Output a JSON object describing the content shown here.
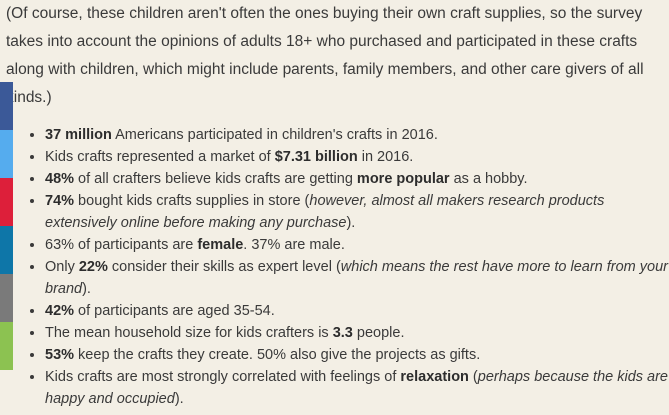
{
  "intro_text": "(Of course, these children aren't often the ones buying their own craft supplies, so the survey takes into account the opinions of adults 18+ who purchased and participated in these crafts along with children, which might include parents, family members, and other care givers of all kinds.)",
  "share_colors": [
    "#3b5998",
    "#55acee",
    "#dd1f3a",
    "#0e76a8",
    "#7a7a7a",
    "#8cc251"
  ],
  "facts": [
    [
      "37 million",
      " Americans participated in children's crafts in 2016."
    ],
    [
      "Kids crafts represented a market of ",
      "$7.31 billion",
      " in 2016."
    ],
    [
      "48%",
      " of all crafters believe kids crafts are getting ",
      "more popular",
      " as a hobby."
    ],
    [
      "74%",
      " bought kids crafts supplies in store (",
      "however, almost all makers research products extensively online before making any purchase",
      ")."
    ],
    [
      "63% of participants are ",
      "female",
      ". 37% are male."
    ],
    [
      "Only ",
      "22%",
      " consider their skills as expert level (",
      "which means the rest have more to learn from your brand",
      ")."
    ],
    [
      "42%",
      " of participants are aged 35-54."
    ],
    [
      "The mean household size for kids crafters is ",
      "3.3",
      " people."
    ],
    [
      "53%",
      " keep the crafts they create. 50% also give the projects as gifts."
    ],
    [
      "Kids crafts are most strongly correlated with feelings of ",
      "relaxation",
      " (",
      "perhaps because the kids are happy and occupied",
      ")."
    ]
  ]
}
